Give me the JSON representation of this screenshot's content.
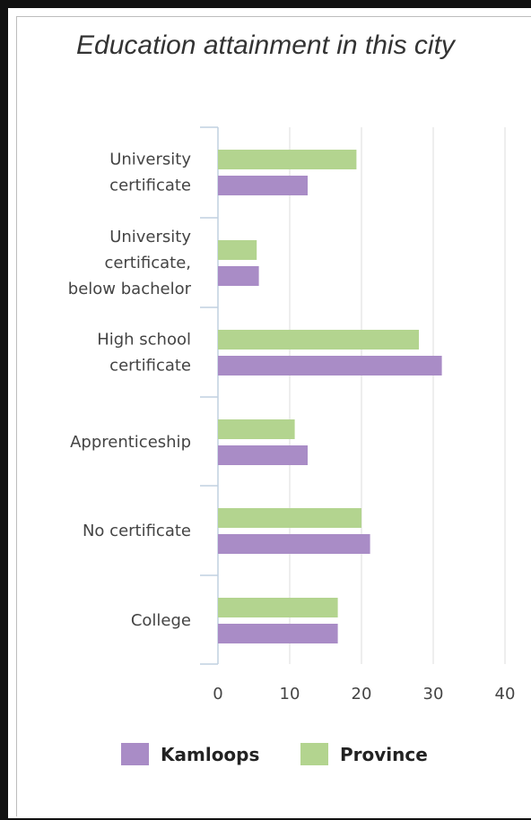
{
  "chart_data": {
    "type": "bar",
    "orientation": "horizontal",
    "title": "Education attainment in this city",
    "categories": [
      [
        "University",
        "certificate"
      ],
      [
        "University",
        "certificate,",
        "below bachelor"
      ],
      [
        "High school",
        "certificate"
      ],
      [
        "Apprenticeship"
      ],
      [
        "No certificate"
      ],
      [
        "College"
      ]
    ],
    "series": [
      {
        "name": "Province",
        "color": "#b3d48f",
        "values": [
          19.3,
          5.4,
          28.0,
          10.7,
          20.0,
          16.7
        ]
      },
      {
        "name": "Kamloops",
        "color": "#a98cc6",
        "values": [
          12.5,
          5.7,
          31.2,
          12.5,
          21.2,
          16.7
        ]
      }
    ],
    "xlim": [
      0,
      40
    ],
    "xticks": [
      "0",
      "10",
      "20",
      "30",
      "40"
    ],
    "grid": true,
    "legend": {
      "placement": "bottom",
      "items": [
        {
          "name": "Kamloops",
          "color": "#a98cc6"
        },
        {
          "name": "Province",
          "color": "#b3d48f"
        }
      ]
    }
  }
}
